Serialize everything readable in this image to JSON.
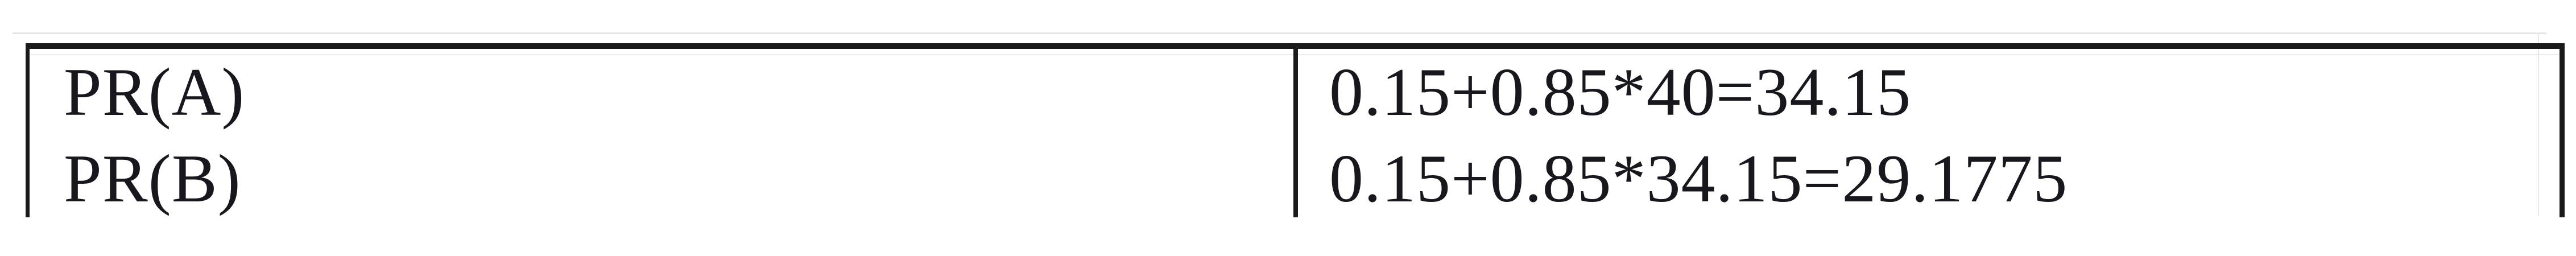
{
  "document": {
    "description_context": "table fragment with PageRank iteration calculations",
    "table": {
      "rows": [
        {
          "label": "PR(A)",
          "formula": "0.15+0.85*40=34.15"
        },
        {
          "label": "PR(B)",
          "formula": "0.15+0.85*34.15=29.1775"
        }
      ]
    }
  },
  "colors": {
    "border": "#1a1a1a",
    "text": "#17171d",
    "artifact_line": "#dedede",
    "background": "#ffffff"
  }
}
